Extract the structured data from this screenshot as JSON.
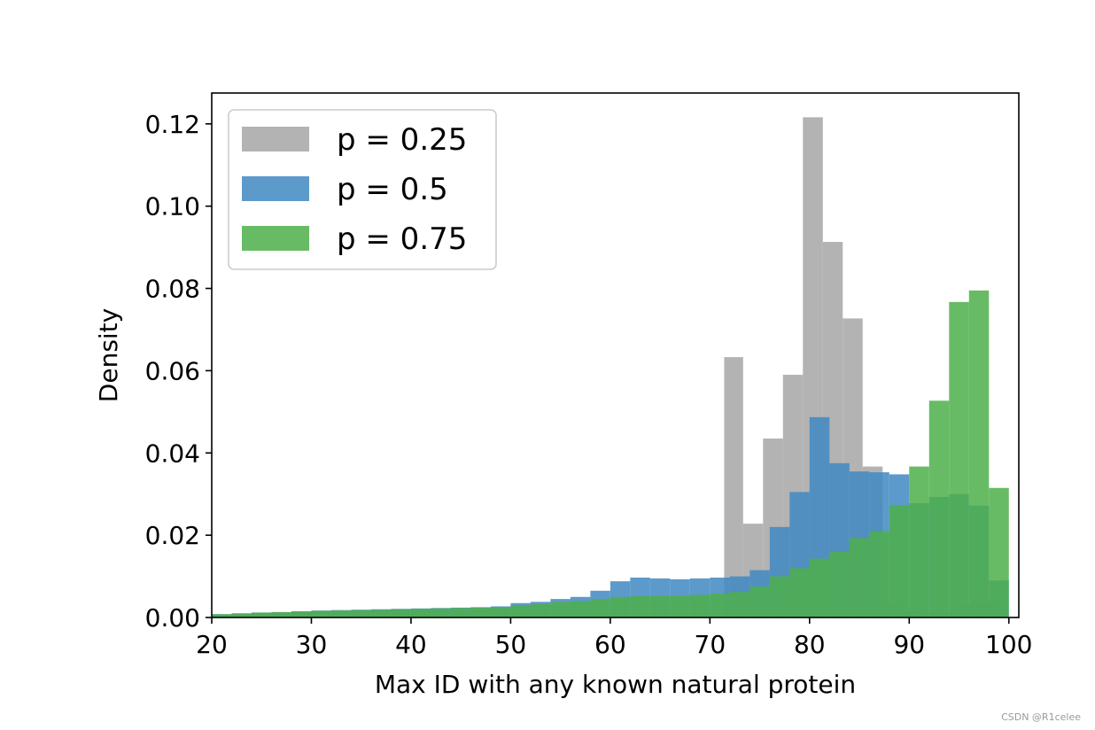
{
  "chart_data": {
    "type": "histogram",
    "xlabel": "Max ID with any known natural protein",
    "ylabel": "Density",
    "xlim": [
      20,
      101
    ],
    "ylim": [
      0,
      0.1275
    ],
    "xticks": [
      "20",
      "30",
      "40",
      "50",
      "60",
      "70",
      "80",
      "90",
      "100"
    ],
    "yticks": [
      "0.00",
      "0.02",
      "0.04",
      "0.06",
      "0.08",
      "0.10",
      "0.12"
    ],
    "grid": false,
    "legend_placement": "top-left",
    "series": [
      {
        "name": "p = 0.25",
        "color": "#a6a6a6",
        "bins": [
          {
            "x0": 71.43,
            "x1": 73.33,
            "y": 0.0633
          },
          {
            "x0": 73.33,
            "x1": 75.33,
            "y": 0.0228
          },
          {
            "x0": 75.33,
            "x1": 77.33,
            "y": 0.0435
          },
          {
            "x0": 77.33,
            "x1": 79.33,
            "y": 0.059
          },
          {
            "x0": 79.33,
            "x1": 81.33,
            "y": 0.1216
          },
          {
            "x0": 81.33,
            "x1": 83.33,
            "y": 0.0913
          },
          {
            "x0": 83.33,
            "x1": 85.33,
            "y": 0.0727
          },
          {
            "x0": 85.33,
            "x1": 87.33,
            "y": 0.0367
          },
          {
            "x0": 87.33,
            "x1": 89.33,
            "y": 0.0035
          },
          {
            "x0": 89.33,
            "x1": 91.33,
            "y": 0.0015
          },
          {
            "x0": 91.33,
            "x1": 93.33,
            "y": 0.0008
          },
          {
            "x0": 93.33,
            "x1": 95.33,
            "y": 0.001
          },
          {
            "x0": 95.33,
            "x1": 97.33,
            "y": 0.0033
          },
          {
            "x0": 97.33,
            "x1": 99.33,
            "y": 0.0037
          }
        ]
      },
      {
        "name": "p = 0.5",
        "color": "#3f88c2",
        "bins": [
          {
            "x0": 20,
            "x1": 22,
            "y": 0.0008
          },
          {
            "x0": 22,
            "x1": 24,
            "y": 0.001
          },
          {
            "x0": 24,
            "x1": 26,
            "y": 0.0012
          },
          {
            "x0": 26,
            "x1": 28,
            "y": 0.0013
          },
          {
            "x0": 28,
            "x1": 30,
            "y": 0.0015
          },
          {
            "x0": 30,
            "x1": 32,
            "y": 0.0017
          },
          {
            "x0": 32,
            "x1": 34,
            "y": 0.0018
          },
          {
            "x0": 34,
            "x1": 36,
            "y": 0.0019
          },
          {
            "x0": 36,
            "x1": 38,
            "y": 0.002
          },
          {
            "x0": 38,
            "x1": 40,
            "y": 0.0021
          },
          {
            "x0": 40,
            "x1": 42,
            "y": 0.0022
          },
          {
            "x0": 42,
            "x1": 44,
            "y": 0.0023
          },
          {
            "x0": 44,
            "x1": 46,
            "y": 0.0024
          },
          {
            "x0": 46,
            "x1": 48,
            "y": 0.0025
          },
          {
            "x0": 48,
            "x1": 50,
            "y": 0.0027
          },
          {
            "x0": 50,
            "x1": 52,
            "y": 0.0035
          },
          {
            "x0": 52,
            "x1": 54,
            "y": 0.0038
          },
          {
            "x0": 54,
            "x1": 56,
            "y": 0.0045
          },
          {
            "x0": 56,
            "x1": 58,
            "y": 0.005
          },
          {
            "x0": 58,
            "x1": 60,
            "y": 0.0065
          },
          {
            "x0": 60,
            "x1": 62,
            "y": 0.0088
          },
          {
            "x0": 62,
            "x1": 64,
            "y": 0.0097
          },
          {
            "x0": 64,
            "x1": 66,
            "y": 0.0095
          },
          {
            "x0": 66,
            "x1": 68,
            "y": 0.0093
          },
          {
            "x0": 68,
            "x1": 70,
            "y": 0.0095
          },
          {
            "x0": 70,
            "x1": 72,
            "y": 0.0097
          },
          {
            "x0": 72,
            "x1": 74,
            "y": 0.01
          },
          {
            "x0": 74,
            "x1": 76,
            "y": 0.0115
          },
          {
            "x0": 76,
            "x1": 78,
            "y": 0.022
          },
          {
            "x0": 78,
            "x1": 80,
            "y": 0.0305
          },
          {
            "x0": 80,
            "x1": 82,
            "y": 0.0487
          },
          {
            "x0": 82,
            "x1": 84,
            "y": 0.0375
          },
          {
            "x0": 84,
            "x1": 86,
            "y": 0.0355
          },
          {
            "x0": 86,
            "x1": 88,
            "y": 0.0353
          },
          {
            "x0": 88,
            "x1": 90,
            "y": 0.0348
          },
          {
            "x0": 90,
            "x1": 92,
            "y": 0.0278
          },
          {
            "x0": 92,
            "x1": 94,
            "y": 0.0293
          },
          {
            "x0": 94,
            "x1": 96,
            "y": 0.03
          },
          {
            "x0": 96,
            "x1": 98,
            "y": 0.0272
          },
          {
            "x0": 98,
            "x1": 100,
            "y": 0.009
          }
        ]
      },
      {
        "name": "p = 0.75",
        "color": "#4daf4a",
        "bins": [
          {
            "x0": 20,
            "x1": 22,
            "y": 0.0008
          },
          {
            "x0": 22,
            "x1": 24,
            "y": 0.001
          },
          {
            "x0": 24,
            "x1": 26,
            "y": 0.0012
          },
          {
            "x0": 26,
            "x1": 28,
            "y": 0.0013
          },
          {
            "x0": 28,
            "x1": 30,
            "y": 0.0015
          },
          {
            "x0": 30,
            "x1": 32,
            "y": 0.0016
          },
          {
            "x0": 32,
            "x1": 34,
            "y": 0.0017
          },
          {
            "x0": 34,
            "x1": 36,
            "y": 0.0018
          },
          {
            "x0": 36,
            "x1": 38,
            "y": 0.0019
          },
          {
            "x0": 38,
            "x1": 40,
            "y": 0.002
          },
          {
            "x0": 40,
            "x1": 42,
            "y": 0.0021
          },
          {
            "x0": 42,
            "x1": 44,
            "y": 0.0022
          },
          {
            "x0": 44,
            "x1": 46,
            "y": 0.0023
          },
          {
            "x0": 46,
            "x1": 48,
            "y": 0.0024
          },
          {
            "x0": 48,
            "x1": 50,
            "y": 0.0025
          },
          {
            "x0": 50,
            "x1": 52,
            "y": 0.003
          },
          {
            "x0": 52,
            "x1": 54,
            "y": 0.0033
          },
          {
            "x0": 54,
            "x1": 56,
            "y": 0.0038
          },
          {
            "x0": 56,
            "x1": 58,
            "y": 0.004
          },
          {
            "x0": 58,
            "x1": 60,
            "y": 0.0045
          },
          {
            "x0": 60,
            "x1": 62,
            "y": 0.005
          },
          {
            "x0": 62,
            "x1": 64,
            "y": 0.0052
          },
          {
            "x0": 64,
            "x1": 66,
            "y": 0.0053
          },
          {
            "x0": 66,
            "x1": 68,
            "y": 0.0053
          },
          {
            "x0": 68,
            "x1": 70,
            "y": 0.0055
          },
          {
            "x0": 70,
            "x1": 72,
            "y": 0.0058
          },
          {
            "x0": 72,
            "x1": 74,
            "y": 0.0062
          },
          {
            "x0": 74,
            "x1": 76,
            "y": 0.0075
          },
          {
            "x0": 76,
            "x1": 78,
            "y": 0.01
          },
          {
            "x0": 78,
            "x1": 80,
            "y": 0.012
          },
          {
            "x0": 80,
            "x1": 82,
            "y": 0.0143
          },
          {
            "x0": 82,
            "x1": 84,
            "y": 0.016
          },
          {
            "x0": 84,
            "x1": 86,
            "y": 0.0193
          },
          {
            "x0": 86,
            "x1": 88,
            "y": 0.021
          },
          {
            "x0": 88,
            "x1": 90,
            "y": 0.0273
          },
          {
            "x0": 90,
            "x1": 92,
            "y": 0.0367
          },
          {
            "x0": 92,
            "x1": 94,
            "y": 0.0527
          },
          {
            "x0": 94,
            "x1": 96,
            "y": 0.0767
          },
          {
            "x0": 96,
            "x1": 98,
            "y": 0.0795
          },
          {
            "x0": 98,
            "x1": 100,
            "y": 0.0315
          }
        ]
      }
    ]
  },
  "footer": {
    "watermark": "CSDN @R1celee"
  }
}
